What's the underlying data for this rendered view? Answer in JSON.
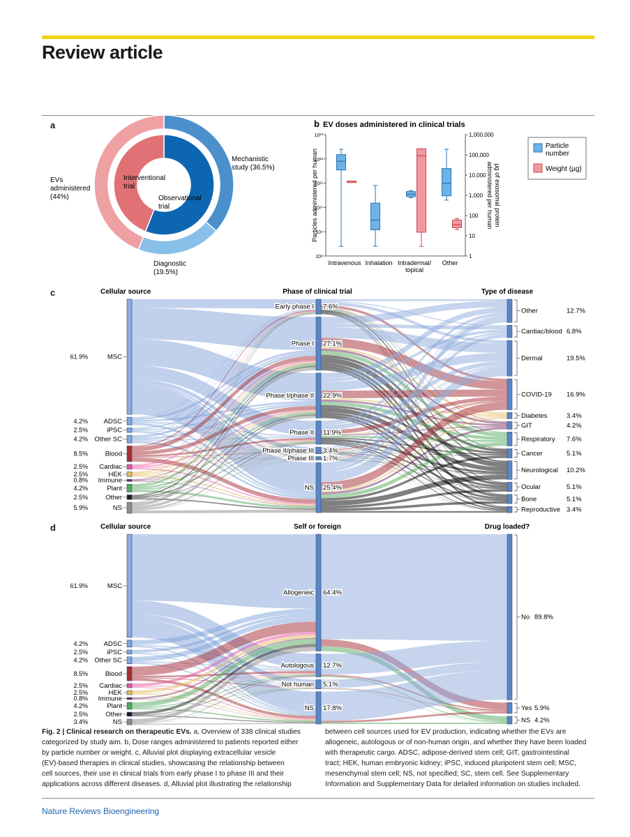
{
  "header": {
    "title": "Review article"
  },
  "footer": {
    "journal": "Nature Reviews Bioengineering"
  },
  "panels": {
    "a": {
      "letter": "a",
      "outer_labels": [
        "Mechanistic",
        "study (36.5%)",
        "EVs",
        "administered",
        "(44%)",
        "Diagnostic",
        "(19.5%)"
      ],
      "inner_labels": [
        "Interventional",
        "trial",
        "Observational",
        "trial"
      ]
    },
    "b": {
      "letter": "b"
    },
    "c": {
      "letter": "c",
      "col_headers": [
        "Cellular source",
        "Phase of clinical trial",
        "Type of disease"
      ],
      "left_pcts": [
        "61.9%",
        "4.2%",
        "2.5%",
        "4.2%",
        "8.5%",
        "2.5%",
        "2.5%",
        "0.8%",
        "4.2%",
        "2.5%",
        "5.9%"
      ]
    },
    "d": {
      "letter": "d",
      "col_headers": [
        "Cellular source",
        "Self or foreign",
        "Drug loaded?"
      ],
      "left_pcts": [
        "61.9%",
        "4.2%",
        "2.5%",
        "4.2%",
        "8.5%",
        "2.5%",
        "2.5%",
        "0.8%",
        "4.2%",
        "2.5%",
        "3.4%"
      ]
    }
  },
  "chart_data": [
    {
      "type": "pie",
      "title": "",
      "rings": [
        {
          "name": "outer",
          "slices": [
            {
              "label": "Mechanistic study",
              "value": 36.5,
              "color": "#4b8fcc"
            },
            {
              "label": "Diagnostic",
              "value": 19.5,
              "color": "#88c0ea"
            },
            {
              "label": "EVs administered",
              "value": 44.0,
              "color": "#eea0a3"
            }
          ]
        },
        {
          "name": "inner",
          "slices": [
            {
              "label": "Observational trial",
              "value": 56.0,
              "color": "#0d66b1"
            },
            {
              "label": "Interventional trial",
              "value": 44.0,
              "color": "#e07174"
            }
          ]
        }
      ]
    },
    {
      "type": "box",
      "title": "EV doses administered in clinical trials",
      "categories": [
        "Intravenous",
        "Inhalation",
        "Intradermal/\ntopical",
        "Other"
      ],
      "ylabel": "Particles administered per human",
      "y2label": "µg of exosomal protein administered per human",
      "yscale": "log",
      "ylim": [
        100000000,
        10000000000000
      ],
      "yticks": [
        "10⁸",
        "10⁹",
        "10¹⁰",
        "10¹¹",
        "10¹²",
        "10¹³"
      ],
      "y2ticks": [
        "1",
        "10",
        "100",
        "1,000",
        "10,000",
        "100,000",
        "1,000,000"
      ],
      "legend": {
        "position": "right",
        "entries": [
          {
            "name": "Particle number",
            "color": "#6fb3e6",
            "edge": "#2a74b4"
          },
          {
            "name": "Weight (µg)",
            "color": "#ef9aa0",
            "edge": "#d0454e"
          }
        ]
      },
      "series": [
        {
          "name": "Particle number",
          "boxes": [
            {
              "category": "Intravenous",
              "whisker_low": 250000000.0,
              "q1": 350000000000.0,
              "median": 800000000000.0,
              "q3": 1500000000000.0,
              "whisker_high": 2500000000000.0
            },
            {
              "category": "Inhalation",
              "whisker_low": 250000000.0,
              "q1": 1200000000.0,
              "median": 3000000000.0,
              "q3": 15000000000.0,
              "whisker_high": 80000000000.0
            },
            {
              "category": "Intradermal/\ntopical",
              "whisker_low": 25000000000.0,
              "q1": 28000000000.0,
              "median": 35000000000.0,
              "q3": 45000000000.0,
              "whisker_high": 50000000000.0
            },
            {
              "category": "Other",
              "whisker_low": 20000000000.0,
              "q1": 30000000000.0,
              "median": 100000000000.0,
              "q3": 400000000000.0,
              "whisker_high": 2500000000000.0
            }
          ]
        },
        {
          "name": "Weight (µg)",
          "boxes": [
            {
              "category": "Intravenous",
              "whisker_low": 5000,
              "q1": 5000,
              "median": 5000,
              "q3": 5000,
              "whisker_high": 5000
            },
            {
              "category": "Intradermal/\ntopical",
              "whisker_low": 3,
              "q1": 15,
              "median": 90000,
              "q3": 200000,
              "whisker_high": 200000
            },
            {
              "category": "Other",
              "whisker_low": 20,
              "q1": 25,
              "median": 35,
              "q3": 60,
              "whisker_high": 70
            }
          ]
        }
      ]
    },
    {
      "type": "alluvial",
      "title": "",
      "columns": [
        {
          "name": "Cellular source",
          "nodes": [
            {
              "label": "MSC",
              "pct": "61.9%"
            },
            {
              "label": "ADSC",
              "pct": "4.2%"
            },
            {
              "label": "iPSC",
              "pct": "2.5%"
            },
            {
              "label": "Other SC",
              "pct": "4.2%"
            },
            {
              "label": "Blood",
              "pct": "8.5%"
            },
            {
              "label": "Cardiac",
              "pct": "2.5%"
            },
            {
              "label": "HEK",
              "pct": "2.5%"
            },
            {
              "label": "Immune",
              "pct": "0.8%"
            },
            {
              "label": "Plant",
              "pct": "4.2%"
            },
            {
              "label": "Other",
              "pct": "2.5%"
            },
            {
              "label": "NS",
              "pct": "5.9%"
            }
          ]
        },
        {
          "name": "Phase of clinical trial",
          "nodes": [
            {
              "label": "Early phase I",
              "pct": "7.6%"
            },
            {
              "label": "Phase I",
              "pct": "27.1%"
            },
            {
              "label": "Phase I/phase II",
              "pct": "22.9%"
            },
            {
              "label": "Phase II",
              "pct": "11.9%"
            },
            {
              "label": "Phase II/phase III",
              "pct": "3.4%"
            },
            {
              "label": "Phase III",
              "pct": "1.7%"
            },
            {
              "label": "NS",
              "pct": "25.4%"
            }
          ]
        },
        {
          "name": "Type of disease",
          "nodes": [
            {
              "label": "Other",
              "pct": "12.7%"
            },
            {
              "label": "Cardiac/blood",
              "pct": "6.8%"
            },
            {
              "label": "Dermal",
              "pct": "19.5%"
            },
            {
              "label": "COVID-19",
              "pct": "16.9%"
            },
            {
              "label": "Diabetes",
              "pct": "3.4%"
            },
            {
              "label": "GIT",
              "pct": "4.2%"
            },
            {
              "label": "Respiratory",
              "pct": "7.6%"
            },
            {
              "label": "Cancer",
              "pct": "5.1%"
            },
            {
              "label": "Neurological",
              "pct": "10.2%"
            },
            {
              "label": "Ocular",
              "pct": "5.1%"
            },
            {
              "label": "Bone",
              "pct": "5.1%"
            },
            {
              "label": "Reproductive",
              "pct": "3.4%"
            }
          ]
        }
      ]
    },
    {
      "type": "alluvial",
      "title": "",
      "columns": [
        {
          "name": "Cellular source",
          "nodes": [
            {
              "label": "MSC",
              "pct": "61.9%"
            },
            {
              "label": "ADSC",
              "pct": "4.2%"
            },
            {
              "label": "iPSC",
              "pct": "2.5%"
            },
            {
              "label": "Other SC",
              "pct": "4.2%"
            },
            {
              "label": "Blood",
              "pct": "8.5%"
            },
            {
              "label": "Cardiac",
              "pct": "2.5%"
            },
            {
              "label": "HEK",
              "pct": "2.5%"
            },
            {
              "label": "Immune",
              "pct": "0.8%"
            },
            {
              "label": "Plant",
              "pct": "4.2%"
            },
            {
              "label": "Other",
              "pct": "2.5%"
            },
            {
              "label": "NS",
              "pct": "3.4%"
            }
          ]
        },
        {
          "name": "Self or foreign",
          "nodes": [
            {
              "label": "Allogeneic",
              "pct": "64.4%"
            },
            {
              "label": "Autologous",
              "pct": "12.7%"
            },
            {
              "label": "Not human",
              "pct": "5.1%"
            },
            {
              "label": "NS",
              "pct": "17.8%"
            }
          ]
        },
        {
          "name": "Drug loaded?",
          "nodes": [
            {
              "label": "No",
              "pct": "89.8%"
            },
            {
              "label": "Yes",
              "pct": "5.9%"
            },
            {
              "label": "NS",
              "pct": "4.2%"
            }
          ]
        }
      ]
    }
  ],
  "caption": {
    "fig_label": "Fig. 2 | Clinical research on therapeutic EVs.",
    "left_lines": [
      " a, Overview of 338 clinical studies",
      "categorized by study aim. b, Dose ranges administered to patients reported either",
      "by particle number or weight. c, Alluvial plot displaying extracellular vesicle",
      "(EV)-based therapies in clinical studies, showcasing the relationship between",
      "cell sources, their use in clinical trials from early phase I to phase III and their",
      "applications across different diseases. d, Alluvial plot illustrating the relationship"
    ],
    "right_lines": [
      "between cell sources used for EV production, indicating whether the EVs are",
      "allogeneic, autologous or of non-human origin, and whether they have been loaded",
      "with therapeutic cargo. ADSC, adipose-derived stem cell; GIT, gastrointestinal",
      "tract; HEK, human embryonic kidney; iPSC, induced pluripotent stem cell; MSC,",
      "mesenchymal stem cell; NS, not specified; SC, stem cell. See Supplementary",
      "Information and Supplementary Data for detailed information on studies included."
    ]
  }
}
